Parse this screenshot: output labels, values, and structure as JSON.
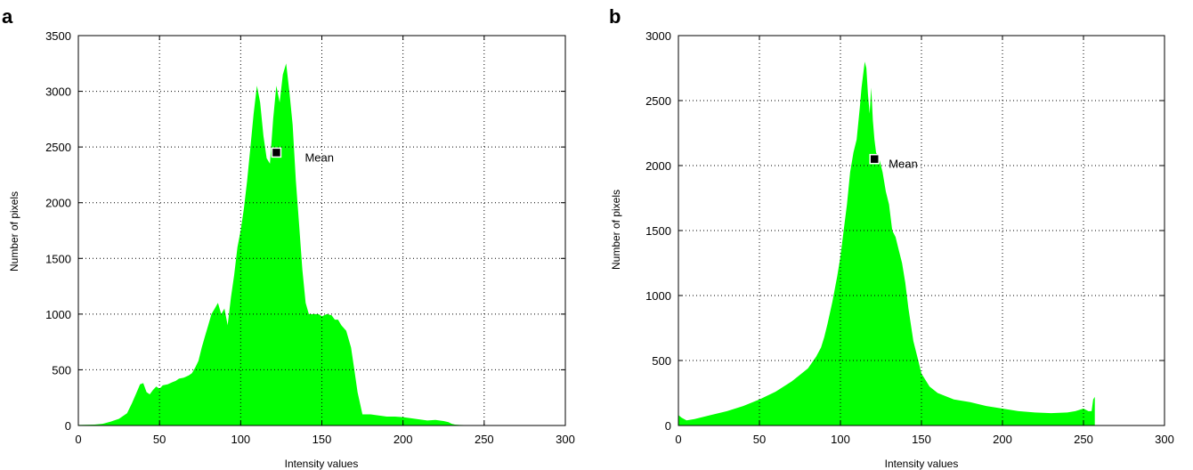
{
  "colors": {
    "histogram": "#00ff00",
    "marker": "#000000",
    "grid": "#000000",
    "background": "#ffffff"
  },
  "chart_data": [
    {
      "type": "area",
      "panel_label": "a",
      "xlabel": "Intensity values",
      "ylabel": "Number of pixels",
      "xlim": [
        0,
        300
      ],
      "ylim": [
        0,
        3500
      ],
      "xticks": [
        0,
        50,
        100,
        150,
        200,
        250,
        300
      ],
      "yticks": [
        0,
        500,
        1000,
        1500,
        2000,
        2500,
        3000,
        3500
      ],
      "grid": true,
      "series": [
        {
          "x": [
            0,
            10,
            15,
            20,
            25,
            30,
            33,
            36,
            38,
            40,
            42,
            44,
            46,
            48,
            50,
            52,
            55,
            58,
            60,
            62,
            65,
            68,
            70,
            72,
            74,
            76,
            78,
            80,
            82,
            84,
            86,
            88,
            90,
            92,
            94,
            96,
            98,
            100,
            102,
            104,
            106,
            108,
            110,
            112,
            114,
            116,
            118,
            120,
            122,
            124,
            126,
            128,
            130,
            132,
            134,
            136,
            138,
            140,
            142,
            145,
            148,
            150,
            153,
            156,
            158,
            160,
            162,
            165,
            168,
            170,
            172,
            175,
            180,
            185,
            190,
            195,
            200,
            205,
            210,
            215,
            220,
            225,
            228,
            230,
            232,
            235,
            240
          ],
          "values": [
            5,
            8,
            15,
            35,
            60,
            110,
            200,
            300,
            370,
            380,
            300,
            280,
            320,
            350,
            330,
            360,
            370,
            390,
            400,
            420,
            430,
            450,
            470,
            520,
            580,
            700,
            800,
            900,
            1000,
            1050,
            1100,
            1000,
            1050,
            900,
            1150,
            1350,
            1600,
            1750,
            1950,
            2200,
            2500,
            2800,
            3050,
            2900,
            2600,
            2400,
            2350,
            2750,
            3050,
            2900,
            3150,
            3250,
            3000,
            2700,
            2200,
            1800,
            1400,
            1100,
            1000,
            1000,
            1000,
            980,
            1000,
            990,
            950,
            950,
            900,
            850,
            700,
            500,
            300,
            100,
            100,
            90,
            80,
            80,
            75,
            65,
            55,
            45,
            50,
            40,
            30,
            15,
            8,
            5,
            3
          ]
        }
      ],
      "annotations": [
        {
          "label": "Mean",
          "x": 122,
          "y": 2450
        }
      ]
    },
    {
      "type": "area",
      "panel_label": "b",
      "xlabel": "Intensity values",
      "ylabel": "Number of pixels",
      "xlim": [
        0,
        300
      ],
      "ylim": [
        0,
        3000
      ],
      "xticks": [
        0,
        50,
        100,
        150,
        200,
        250,
        300
      ],
      "yticks": [
        0,
        500,
        1000,
        1500,
        2000,
        2500,
        3000
      ],
      "grid": true,
      "series": [
        {
          "x": [
            0,
            2,
            5,
            10,
            20,
            30,
            40,
            50,
            60,
            70,
            75,
            80,
            85,
            88,
            90,
            92,
            95,
            98,
            100,
            102,
            104,
            106,
            108,
            110,
            112,
            113,
            114,
            115,
            116,
            117,
            118,
            119,
            120,
            121,
            122,
            124,
            126,
            128,
            130,
            132,
            134,
            136,
            138,
            140,
            142,
            145,
            148,
            150,
            155,
            160,
            170,
            180,
            190,
            200,
            210,
            220,
            230,
            240,
            245,
            250,
            253,
            255,
            256,
            257
          ],
          "values": [
            80,
            60,
            40,
            50,
            80,
            110,
            150,
            200,
            260,
            340,
            390,
            440,
            530,
            600,
            680,
            780,
            950,
            1150,
            1300,
            1500,
            1700,
            1950,
            2100,
            2200,
            2450,
            2600,
            2700,
            2800,
            2750,
            2550,
            2400,
            2600,
            2350,
            2200,
            2100,
            2050,
            1950,
            1800,
            1700,
            1500,
            1450,
            1350,
            1250,
            1100,
            900,
            650,
            500,
            400,
            300,
            250,
            200,
            180,
            150,
            130,
            110,
            100,
            95,
            100,
            110,
            130,
            110,
            110,
            200,
            220
          ]
        }
      ],
      "annotations": [
        {
          "label": "Mean",
          "x": 121,
          "y": 2050
        }
      ]
    }
  ]
}
